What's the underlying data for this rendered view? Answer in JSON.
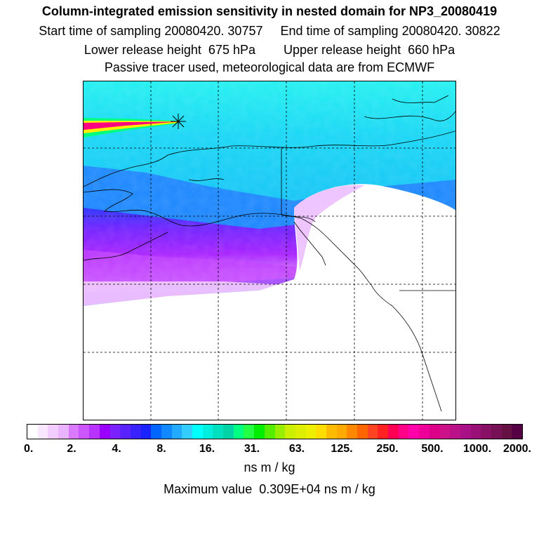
{
  "header": {
    "title": "Column-integrated emission sensitivity in nested domain for NP3_20080419",
    "line2": "Start time of sampling 20080420. 30757     End time of sampling 20080420. 30822",
    "line3": "Lower release height  675 hPa        Upper release height  660 hPa",
    "line4": "Passive tracer used, meteorological data are from ECMWF"
  },
  "colorbar": {
    "ticks": [
      "0.",
      "2.",
      "4.",
      "8.",
      "16.",
      "31.",
      "63.",
      "125.",
      "250.",
      "500.",
      "1000.",
      "2000."
    ],
    "colors": [
      "#ffffff",
      "#f9e6ff",
      "#f2ccff",
      "#e9b3ff",
      "#d97aff",
      "#cc55ff",
      "#b833ff",
      "#9900ff",
      "#7a22ff",
      "#5a22ff",
      "#3a22ff",
      "#1a22ff",
      "#0066ff",
      "#1188ff",
      "#22aaff",
      "#33ccff",
      "#00ffff",
      "#00eedd",
      "#00e0c0",
      "#00d3a5",
      "#00ff80",
      "#22ff44",
      "#00ee00",
      "#55ee00",
      "#99ee00",
      "#ccee00",
      "#ddee00",
      "#eeee00",
      "#ffdd00",
      "#ffbb00",
      "#ffaa00",
      "#ff8800",
      "#ff6600",
      "#ff4422",
      "#ff2222",
      "#ff0055",
      "#ff0088",
      "#ff00aa",
      "#ee0099",
      "#dd0088",
      "#cc1188",
      "#bb1188",
      "#aa1188",
      "#991177",
      "#881166",
      "#771155",
      "#661144",
      "#550044"
    ],
    "unit": "ns m / kg",
    "max_label": "Maximum value  0.309E+04 ns m / kg"
  },
  "map": {
    "release_marker": "release-point-asterisk",
    "plume_colors": {
      "background": "#19d9f5",
      "band_high": "#ff0080",
      "band_mid": "#ffee00",
      "band_low": "#00ff80",
      "low_sensitivity": "#c060ff",
      "mid_blue": "#1a6cff"
    }
  }
}
